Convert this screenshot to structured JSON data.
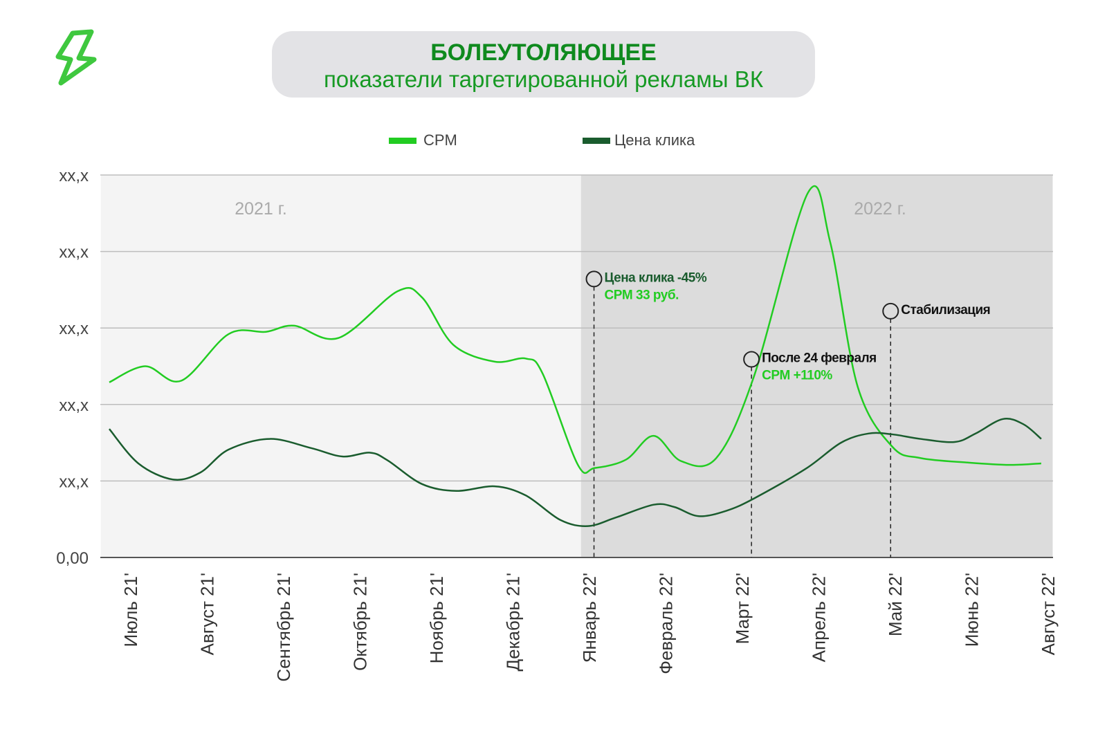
{
  "title": {
    "line1": "БОЛЕУТОЛЯЮЩЕЕ",
    "line2": "показатели таргетированной рекламы ВК"
  },
  "logo": {
    "icon": "lightning-bolt-icon"
  },
  "chart_data": {
    "type": "line",
    "title": "БОЛЕУТОЛЯЮЩЕЕ — показатели таргетированной рекламы ВК",
    "xlabel": "",
    "ylabel": "",
    "categories": [
      "Июль 21'",
      "Август 21'",
      "Сентябрь 21'",
      "Октябрь 21'",
      "Ноябрь 21'",
      "Декабрь 21'",
      "Январь 22'",
      "Февраль 22'",
      "Март 22'",
      "Апрель 22'",
      "Май 22'",
      "Июнь 22'",
      "Август 22'"
    ],
    "y_tick_labels": [
      "0,00",
      "xx,x",
      "xx,x",
      "xx,x",
      "xx,x",
      "xx,x"
    ],
    "ylim": [
      0,
      5
    ],
    "grid": true,
    "legend": {
      "placement": "top-center",
      "entries": [
        "CPM",
        "Цена клика"
      ]
    },
    "colors": {
      "cpm": "#22cc22",
      "click": "#1a5c2e",
      "period2022": "#dcdcdc",
      "period2021": "#f4f4f4"
    },
    "periods": [
      {
        "label": "2021 г.",
        "start": -0.4,
        "end": 5.88
      },
      {
        "label": "2022 г.",
        "start": 5.88,
        "end": 12.05
      }
    ],
    "series": [
      {
        "name": "CPM",
        "points": [
          [
            -0.29,
            2.29
          ],
          [
            0.18,
            2.5
          ],
          [
            0.65,
            2.31
          ],
          [
            1.27,
            2.92
          ],
          [
            1.76,
            2.95
          ],
          [
            2.13,
            3.03
          ],
          [
            2.71,
            2.87
          ],
          [
            3.48,
            3.48
          ],
          [
            3.8,
            3.4
          ],
          [
            4.21,
            2.78
          ],
          [
            4.75,
            2.56
          ],
          [
            5.16,
            2.6
          ],
          [
            5.38,
            2.4
          ],
          [
            5.84,
            1.21
          ],
          [
            6.06,
            1.17
          ],
          [
            6.47,
            1.28
          ],
          [
            6.83,
            1.59
          ],
          [
            7.19,
            1.26
          ],
          [
            7.65,
            1.3
          ],
          [
            8.14,
            2.36
          ],
          [
            8.85,
            4.77
          ],
          [
            9.14,
            4.12
          ],
          [
            9.5,
            2.23
          ],
          [
            9.95,
            1.45
          ],
          [
            10.32,
            1.3
          ],
          [
            10.95,
            1.24
          ],
          [
            11.49,
            1.21
          ],
          [
            11.9,
            1.23
          ]
        ]
      },
      {
        "name": "Цена клика",
        "points": [
          [
            -0.29,
            1.68
          ],
          [
            0.09,
            1.23
          ],
          [
            0.54,
            1.02
          ],
          [
            0.9,
            1.11
          ],
          [
            1.27,
            1.41
          ],
          [
            1.81,
            1.55
          ],
          [
            2.35,
            1.43
          ],
          [
            2.76,
            1.32
          ],
          [
            3.12,
            1.37
          ],
          [
            3.35,
            1.27
          ],
          [
            3.8,
            0.96
          ],
          [
            4.25,
            0.87
          ],
          [
            4.75,
            0.93
          ],
          [
            5.16,
            0.81
          ],
          [
            5.61,
            0.49
          ],
          [
            5.97,
            0.41
          ],
          [
            6.33,
            0.52
          ],
          [
            6.83,
            0.69
          ],
          [
            7.1,
            0.66
          ],
          [
            7.42,
            0.54
          ],
          [
            7.78,
            0.61
          ],
          [
            8.14,
            0.77
          ],
          [
            8.82,
            1.16
          ],
          [
            9.28,
            1.5
          ],
          [
            9.64,
            1.62
          ],
          [
            9.95,
            1.61
          ],
          [
            10.32,
            1.55
          ],
          [
            10.77,
            1.51
          ],
          [
            11.04,
            1.62
          ],
          [
            11.4,
            1.81
          ],
          [
            11.67,
            1.74
          ],
          [
            11.9,
            1.55
          ]
        ]
      }
    ],
    "annotations": [
      {
        "x": 6.05,
        "y": 3.64,
        "lines": [
          {
            "text": "Цена клика -45%",
            "color": "#1a5c2e"
          },
          {
            "text": "CPM 33 руб.",
            "color": "#22cc22"
          }
        ]
      },
      {
        "x": 8.11,
        "y": 2.59,
        "lines": [
          {
            "text": "После 24 февраля",
            "color": "#111111"
          },
          {
            "text": "CPM +110%",
            "color": "#22cc22"
          }
        ]
      },
      {
        "x": 9.93,
        "y": 3.22,
        "lines": [
          {
            "text": "Стабилизация",
            "color": "#111111"
          }
        ]
      }
    ]
  }
}
